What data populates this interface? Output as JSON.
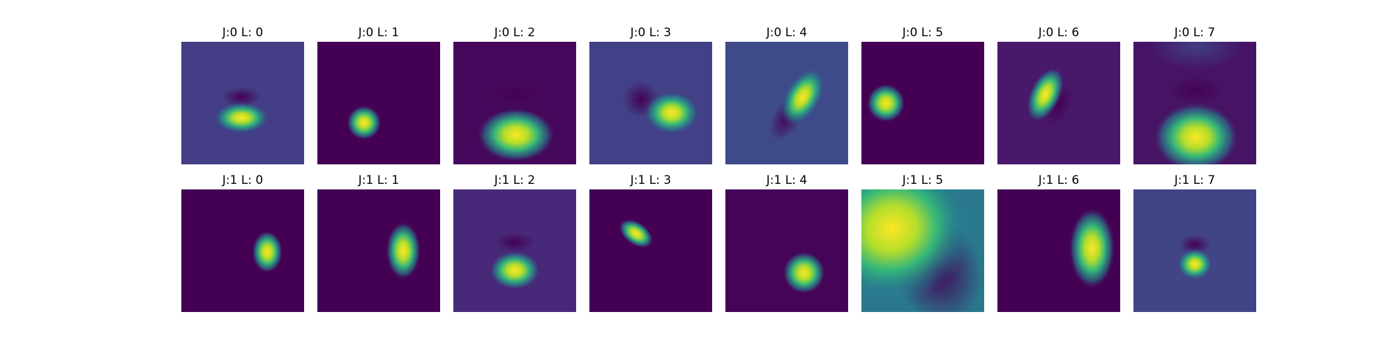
{
  "panels": [
    {
      "title": "J:0 L: 0"
    },
    {
      "title": "J:0 L: 1"
    },
    {
      "title": "J:0 L: 2"
    },
    {
      "title": "J:0 L: 3"
    },
    {
      "title": "J:0 L: 4"
    },
    {
      "title": "J:0 L: 5"
    },
    {
      "title": "J:0 L: 6"
    },
    {
      "title": "J:0 L: 7"
    },
    {
      "title": "J:1 L: 0"
    },
    {
      "title": "J:1 L: 1"
    },
    {
      "title": "J:1 L: 2"
    },
    {
      "title": "J:1 L: 3"
    },
    {
      "title": "J:1 L: 4"
    },
    {
      "title": "J:1 L: 5"
    },
    {
      "title": "J:1 L: 6"
    },
    {
      "title": "J:1 L: 7"
    }
  ]
}
